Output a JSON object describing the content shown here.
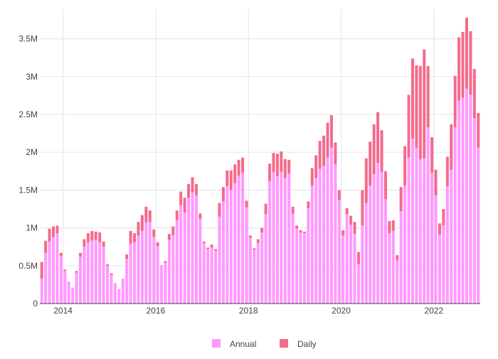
{
  "chart_data": {
    "type": "bar",
    "stacked": true,
    "grid": true,
    "legend_position": "bottom",
    "xlabel": "",
    "ylabel": "",
    "ylim": [
      0,
      3900000
    ],
    "x_tick_labels": [
      "2014",
      "2016",
      "2018",
      "2020",
      "2022"
    ],
    "x_tick_index": [
      6,
      30,
      54,
      78,
      102
    ],
    "y_ticks": [
      0,
      500000,
      1000000,
      1500000,
      2000000,
      2500000,
      3000000,
      3500000
    ],
    "y_tick_labels": [
      "0",
      "0.5M",
      "1M",
      "1.5M",
      "2M",
      "2.5M",
      "3M",
      "3.5M"
    ],
    "series": [
      {
        "name": "Annual",
        "color": "#ff99ff",
        "values": [
          330000,
          670000,
          820000,
          880000,
          930000,
          630000,
          430000,
          290000,
          210000,
          410000,
          620000,
          750000,
          810000,
          830000,
          840000,
          810000,
          750000,
          500000,
          380000,
          270000,
          190000,
          330000,
          590000,
          790000,
          810000,
          900000,
          960000,
          1070000,
          1080000,
          880000,
          760000,
          510000,
          540000,
          840000,
          900000,
          1100000,
          1300000,
          1200000,
          1400000,
          1470000,
          1430000,
          1120000,
          800000,
          720000,
          740000,
          700000,
          1150000,
          1350000,
          1550000,
          1500000,
          1590000,
          1690000,
          1730000,
          1270000,
          870000,
          710000,
          800000,
          940000,
          1180000,
          1620000,
          1740000,
          1680000,
          1740000,
          1660000,
          1720000,
          1190000,
          990000,
          940000,
          930000,
          1260000,
          1560000,
          1660000,
          1780000,
          1820000,
          1930000,
          2060000,
          1840000,
          1370000,
          900000,
          1180000,
          1040000,
          920000,
          520000,
          1030000,
          1330000,
          1560000,
          1710000,
          1860000,
          1740000,
          1380000,
          930000,
          960000,
          570000,
          1220000,
          1560000,
          1930000,
          2180000,
          2060000,
          1910000,
          1920000,
          2330000,
          1730000,
          1430000,
          910000,
          1030000,
          1550000,
          1770000,
          2330000,
          2680000,
          2720000,
          2840000,
          2760000,
          2450000,
          2060000
        ]
      },
      {
        "name": "Daily",
        "color": "#f46b8c",
        "values": [
          220000,
          160000,
          170000,
          140000,
          100000,
          40000,
          20000,
          0,
          0,
          20000,
          50000,
          100000,
          120000,
          130000,
          110000,
          130000,
          70000,
          20000,
          20000,
          0,
          0,
          0,
          60000,
          170000,
          120000,
          180000,
          210000,
          210000,
          150000,
          100000,
          50000,
          0,
          20000,
          80000,
          120000,
          130000,
          180000,
          200000,
          180000,
          200000,
          150000,
          70000,
          20000,
          20000,
          40000,
          20000,
          180000,
          190000,
          210000,
          260000,
          250000,
          210000,
          200000,
          90000,
          30000,
          20000,
          50000,
          60000,
          140000,
          230000,
          250000,
          300000,
          270000,
          250000,
          180000,
          90000,
          40000,
          30000,
          20000,
          90000,
          230000,
          300000,
          370000,
          400000,
          460000,
          430000,
          290000,
          130000,
          70000,
          80000,
          120000,
          160000,
          160000,
          470000,
          590000,
          580000,
          660000,
          670000,
          550000,
          370000,
          160000,
          140000,
          70000,
          320000,
          520000,
          830000,
          1060000,
          1090000,
          1230000,
          1440000,
          810000,
          470000,
          340000,
          150000,
          220000,
          390000,
          600000,
          680000,
          840000,
          870000,
          940000,
          840000,
          650000,
          460000
        ]
      }
    ]
  }
}
